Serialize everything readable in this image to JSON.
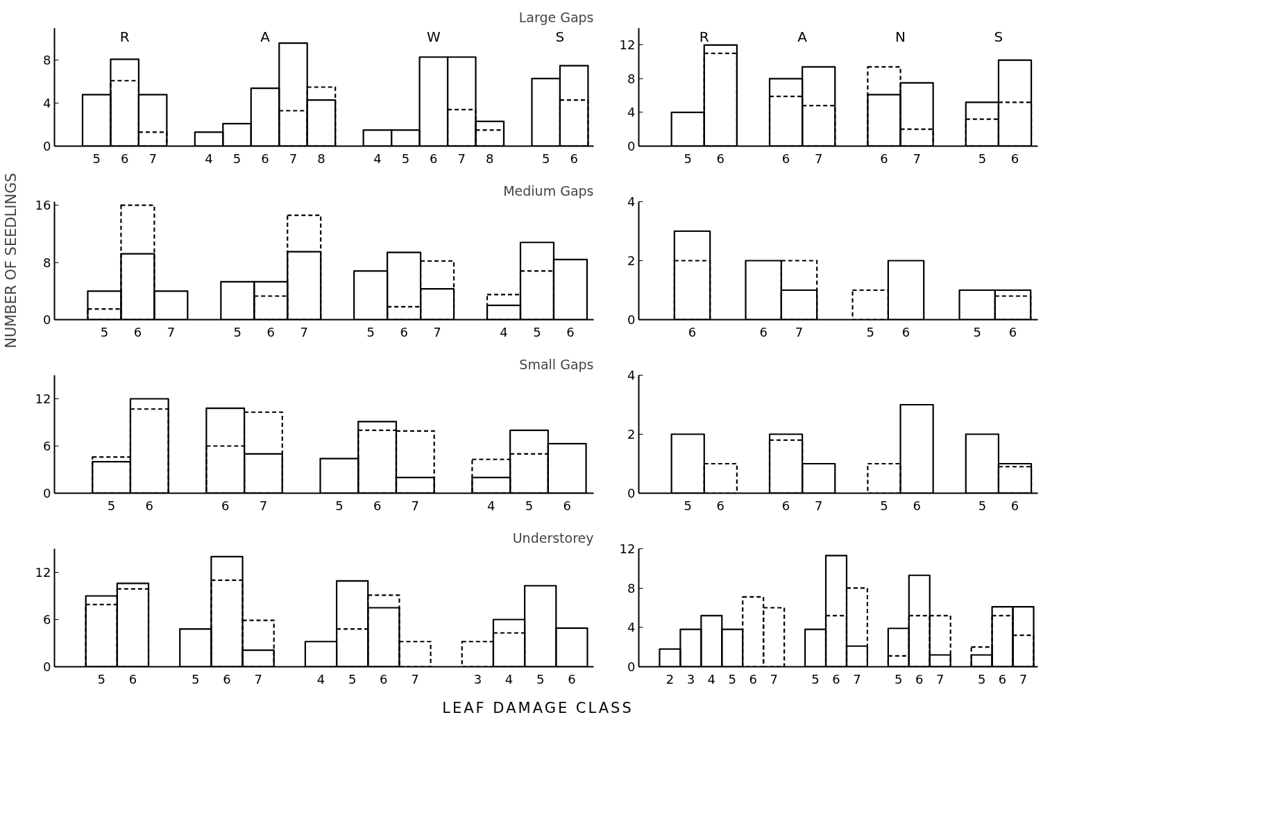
{
  "chart_data": [
    {
      "type": "bar",
      "title": "Large Gaps",
      "annotations": [
        "R",
        "A",
        "W",
        "S"
      ],
      "categories": [
        "5",
        "6",
        "7",
        null,
        "4",
        "5",
        "6",
        "7",
        "8",
        null,
        "4",
        "5",
        "6",
        "7",
        "8",
        null,
        "5",
        "6"
      ],
      "ylim": [
        0,
        11
      ],
      "yticks": [
        0,
        4,
        8
      ],
      "series": [
        {
          "color": "#000000",
          "line_style": "solid",
          "values": [
            4.8,
            8.1,
            4.8,
            null,
            1.3,
            2.1,
            5.4,
            9.6,
            4.3,
            null,
            1.5,
            1.5,
            8.3,
            8.3,
            2.3,
            null,
            6.3,
            7.5
          ]
        },
        {
          "color": "#000000",
          "line_style": "dashed",
          "values": [
            null,
            6.1,
            1.3,
            null,
            null,
            null,
            null,
            3.3,
            5.5,
            null,
            null,
            null,
            null,
            3.4,
            1.5,
            null,
            null,
            4.3
          ]
        }
      ]
    },
    {
      "type": "bar",
      "annotations": [
        "R",
        "A",
        "N",
        "S"
      ],
      "categories": [
        "5",
        "6",
        null,
        "6",
        "7",
        null,
        "6",
        "7",
        null,
        "5",
        "6"
      ],
      "ylim": [
        0,
        14
      ],
      "yticks": [
        0,
        4,
        8,
        12
      ],
      "series": [
        {
          "color": "#000000",
          "line_style": "solid",
          "values": [
            4,
            12,
            null,
            8,
            9.4,
            null,
            6.1,
            7.5,
            null,
            5.2,
            10.2
          ]
        },
        {
          "color": "#000000",
          "line_style": "dashed",
          "values": [
            null,
            11,
            null,
            5.9,
            4.8,
            null,
            9.4,
            2,
            null,
            3.2,
            5.2
          ]
        }
      ]
    },
    {
      "type": "bar",
      "title": "Medium Gaps",
      "ylabel": "NUMBER OF SEEDLINGS",
      "categories": [
        "5",
        "6",
        "7",
        null,
        "5",
        "6",
        "7",
        null,
        "5",
        "6",
        "7",
        null,
        "4",
        "5",
        "6"
      ],
      "ylim": [
        0,
        16.5
      ],
      "yticks": [
        0,
        8,
        16
      ],
      "series": [
        {
          "color": "#000000",
          "line_style": "solid",
          "values": [
            4,
            9.2,
            4,
            null,
            5.3,
            5.3,
            9.5,
            null,
            6.8,
            9.4,
            4.3,
            null,
            2,
            10.8,
            8.4
          ]
        },
        {
          "color": "#000000",
          "line_style": "dashed",
          "values": [
            1.5,
            16,
            null,
            null,
            null,
            3.3,
            14.6,
            null,
            null,
            1.8,
            8.2,
            null,
            3.5,
            6.8,
            null
          ]
        }
      ]
    },
    {
      "type": "bar",
      "categories": [
        "6",
        null,
        "6",
        "7",
        null,
        "5",
        "6",
        null,
        "5",
        "6"
      ],
      "ylim": [
        0,
        4
      ],
      "yticks": [
        0,
        2,
        4
      ],
      "series": [
        {
          "color": "#000000",
          "line_style": "solid",
          "values": [
            3,
            null,
            2,
            1,
            null,
            null,
            2,
            null,
            1,
            1
          ]
        },
        {
          "color": "#000000",
          "line_style": "dashed",
          "values": [
            2,
            null,
            null,
            2,
            null,
            1,
            null,
            null,
            null,
            0.8
          ]
        }
      ]
    },
    {
      "type": "bar",
      "title": "Small Gaps",
      "categories": [
        "5",
        "6",
        null,
        "6",
        "7",
        null,
        "5",
        "6",
        "7",
        null,
        "4",
        "5",
        "6"
      ],
      "ylim": [
        0,
        15
      ],
      "yticks": [
        0,
        6,
        12
      ],
      "series": [
        {
          "color": "#000000",
          "line_style": "solid",
          "values": [
            4,
            12,
            null,
            10.8,
            5,
            null,
            4.4,
            9.1,
            2,
            null,
            2,
            8,
            6.3
          ]
        },
        {
          "color": "#000000",
          "line_style": "dashed",
          "values": [
            4.6,
            10.7,
            null,
            6,
            10.3,
            null,
            null,
            8,
            7.9,
            null,
            4.3,
            5,
            null
          ]
        }
      ]
    },
    {
      "type": "bar",
      "categories": [
        "5",
        "6",
        null,
        "6",
        "7",
        null,
        "5",
        "6",
        null,
        "5",
        "6"
      ],
      "ylim": [
        0,
        4
      ],
      "yticks": [
        0,
        2,
        4
      ],
      "series": [
        {
          "color": "#000000",
          "line_style": "solid",
          "values": [
            2,
            null,
            null,
            2,
            1,
            null,
            null,
            3,
            null,
            2,
            1
          ]
        },
        {
          "color": "#000000",
          "line_style": "dashed",
          "values": [
            null,
            1,
            null,
            1.8,
            null,
            null,
            1,
            null,
            null,
            null,
            0.9
          ]
        }
      ]
    },
    {
      "type": "bar",
      "title": "Understorey",
      "categories": [
        "5",
        "6",
        null,
        "5",
        "6",
        "7",
        null,
        "4",
        "5",
        "6",
        "7",
        null,
        "3",
        "4",
        "5",
        "6"
      ],
      "ylim": [
        0,
        15
      ],
      "yticks": [
        0,
        6,
        12
      ],
      "series": [
        {
          "color": "#000000",
          "line_style": "solid",
          "values": [
            9,
            10.6,
            null,
            4.8,
            14,
            2.1,
            null,
            3.2,
            10.9,
            7.5,
            null,
            null,
            null,
            6,
            10.3,
            4.9
          ]
        },
        {
          "color": "#000000",
          "line_style": "dashed",
          "values": [
            7.9,
            9.9,
            null,
            null,
            11,
            5.9,
            null,
            null,
            4.8,
            9.1,
            3.2,
            null,
            3.2,
            4.3,
            null,
            null
          ]
        }
      ]
    },
    {
      "type": "bar",
      "xlabel": "LEAF DAMAGE CLASS",
      "categories": [
        "2",
        "3",
        "4",
        "5",
        "6",
        "7",
        null,
        "5",
        "6",
        "7",
        null,
        "5",
        "6",
        "7",
        null,
        "5",
        "6",
        "7"
      ],
      "ylim": [
        0,
        12
      ],
      "yticks": [
        0,
        4,
        8,
        12
      ],
      "series": [
        {
          "color": "#000000",
          "line_style": "solid",
          "values": [
            1.8,
            3.8,
            5.2,
            3.8,
            null,
            null,
            null,
            3.8,
            11.3,
            2.1,
            null,
            3.9,
            9.3,
            1.2,
            null,
            1.2,
            6.1,
            6.1
          ]
        },
        {
          "color": "#000000",
          "line_style": "dashed",
          "values": [
            null,
            null,
            null,
            null,
            7.1,
            6,
            null,
            null,
            5.2,
            8,
            null,
            1.1,
            5.2,
            5.2,
            null,
            2,
            5.2,
            3.2
          ]
        }
      ]
    }
  ]
}
